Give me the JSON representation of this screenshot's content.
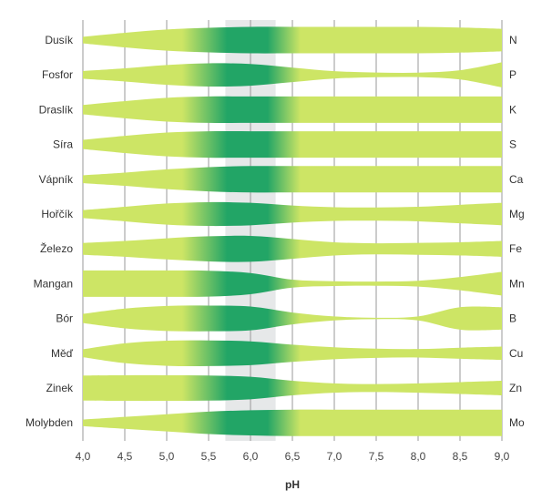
{
  "chart_data": {
    "type": "area",
    "xlabel": "pH",
    "x_ticks": [
      4.0,
      4.5,
      5.0,
      5.5,
      6.0,
      6.5,
      7.0,
      7.5,
      8.0,
      8.5,
      9.0
    ],
    "x_tick_labels": [
      "4,0",
      "4,5",
      "5,0",
      "5,5",
      "6,0",
      "6,5",
      "7,0",
      "7,5",
      "8,0",
      "8,5",
      "9,0"
    ],
    "xlim": [
      4.0,
      9.0
    ],
    "optimal_range": [
      5.7,
      6.3
    ],
    "colors": {
      "band": "#cde565",
      "optimal": "#22a566",
      "highlight": "#e6e8e9",
      "grid": "#999999"
    },
    "series": [
      {
        "name": "Dusík",
        "symbol": "N",
        "x": [
          4.0,
          4.5,
          5.0,
          5.5,
          6.0,
          6.5,
          7.0,
          7.5,
          8.0,
          8.5,
          9.0
        ],
        "availability": [
          0.25,
          0.55,
          0.8,
          0.93,
          1.0,
          1.0,
          1.0,
          1.0,
          1.0,
          0.95,
          0.85
        ]
      },
      {
        "name": "Fosfor",
        "symbol": "P",
        "x": [
          4.0,
          4.5,
          5.0,
          5.5,
          6.0,
          6.5,
          7.0,
          7.5,
          8.0,
          8.5,
          9.0
        ],
        "availability": [
          0.3,
          0.5,
          0.75,
          0.88,
          0.82,
          0.55,
          0.28,
          0.18,
          0.17,
          0.35,
          0.95
        ]
      },
      {
        "name": "Draslík",
        "symbol": "K",
        "x": [
          4.0,
          4.5,
          5.0,
          5.5,
          6.0,
          6.5,
          7.0,
          7.5,
          8.0,
          8.5,
          9.0
        ],
        "availability": [
          0.35,
          0.65,
          0.9,
          1.0,
          1.0,
          1.0,
          1.0,
          1.0,
          1.0,
          1.0,
          1.0
        ]
      },
      {
        "name": "Síra",
        "symbol": "S",
        "x": [
          4.0,
          4.5,
          5.0,
          5.5,
          6.0,
          6.5,
          7.0,
          7.5,
          8.0,
          8.5,
          9.0
        ],
        "availability": [
          0.35,
          0.65,
          0.9,
          1.0,
          1.0,
          1.0,
          1.0,
          1.0,
          1.0,
          1.0,
          1.0
        ]
      },
      {
        "name": "Vápník",
        "symbol": "Ca",
        "x": [
          4.0,
          4.5,
          5.0,
          5.5,
          6.0,
          6.5,
          7.0,
          7.5,
          8.0,
          8.5,
          9.0
        ],
        "availability": [
          0.3,
          0.5,
          0.75,
          0.92,
          1.0,
          1.0,
          1.0,
          1.0,
          1.0,
          1.0,
          1.0
        ]
      },
      {
        "name": "Hořčík",
        "symbol": "Mg",
        "x": [
          4.0,
          4.5,
          5.0,
          5.5,
          6.0,
          6.5,
          7.0,
          7.5,
          8.0,
          8.5,
          9.0
        ],
        "availability": [
          0.3,
          0.55,
          0.8,
          0.9,
          0.85,
          0.65,
          0.52,
          0.5,
          0.55,
          0.7,
          0.85
        ]
      },
      {
        "name": "Železo",
        "symbol": "Fe",
        "x": [
          4.0,
          4.5,
          5.0,
          5.5,
          6.0,
          6.5,
          7.0,
          7.5,
          8.0,
          8.5,
          9.0
        ],
        "availability": [
          0.45,
          0.6,
          0.8,
          0.95,
          0.98,
          0.75,
          0.5,
          0.42,
          0.45,
          0.5,
          0.6
        ]
      },
      {
        "name": "Mangan",
        "symbol": "Mn",
        "x": [
          4.0,
          4.5,
          5.0,
          5.5,
          6.0,
          6.5,
          7.0,
          7.5,
          8.0,
          8.5,
          9.0
        ],
        "availability": [
          1.0,
          1.0,
          1.0,
          0.98,
          0.8,
          0.3,
          0.18,
          0.16,
          0.22,
          0.5,
          0.9
        ]
      },
      {
        "name": "Bór",
        "symbol": "B",
        "x": [
          4.0,
          4.5,
          5.0,
          5.5,
          6.0,
          6.5,
          7.0,
          7.5,
          8.0,
          8.5,
          9.0
        ],
        "availability": [
          0.35,
          0.75,
          0.95,
          0.97,
          0.9,
          0.45,
          0.15,
          0.05,
          0.15,
          0.85,
          0.85
        ]
      },
      {
        "name": "Měď",
        "symbol": "Cu",
        "x": [
          4.0,
          4.5,
          5.0,
          5.5,
          6.0,
          6.5,
          7.0,
          7.5,
          8.0,
          8.5,
          9.0
        ],
        "availability": [
          0.3,
          0.75,
          0.95,
          0.97,
          0.9,
          0.65,
          0.45,
          0.35,
          0.32,
          0.42,
          0.5
        ]
      },
      {
        "name": "Zinek",
        "symbol": "Zn",
        "x": [
          4.0,
          4.5,
          5.0,
          5.5,
          6.0,
          6.5,
          7.0,
          7.5,
          8.0,
          8.5,
          9.0
        ],
        "availability": [
          0.95,
          0.97,
          0.97,
          0.95,
          0.85,
          0.55,
          0.35,
          0.3,
          0.35,
          0.45,
          0.55
        ]
      },
      {
        "name": "Molybden",
        "symbol": "Mo",
        "x": [
          4.0,
          4.5,
          5.0,
          5.5,
          6.0,
          6.5,
          7.0,
          7.5,
          8.0,
          8.5,
          9.0
        ],
        "availability": [
          0.25,
          0.45,
          0.65,
          0.85,
          0.95,
          1.0,
          1.0,
          1.0,
          1.0,
          1.0,
          1.0
        ]
      }
    ]
  }
}
